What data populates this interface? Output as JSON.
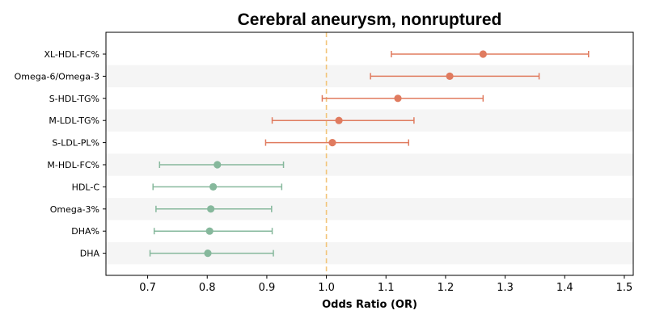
{
  "chart_data": {
    "type": "forest",
    "title": "Cerebral aneurysm, nonruptured",
    "xlabel": "Odds Ratio (OR)",
    "ylabel": "",
    "xlim": [
      0.63,
      1.515
    ],
    "xticks": [
      0.7,
      0.8,
      0.9,
      1.0,
      1.1,
      1.2,
      1.3,
      1.4,
      1.5
    ],
    "xtick_labels": [
      "0.7",
      "0.8",
      "0.9",
      "1.0",
      "1.1",
      "1.2",
      "1.3",
      "1.4",
      "1.5"
    ],
    "reference_line": 1.0,
    "grid": false,
    "alternating_row_shading": true,
    "colors": {
      "risk": "#e07b5f",
      "protective": "#86b89c",
      "reference_line": "#f2c57a",
      "row_shade": "#f5f5f5"
    },
    "rows": [
      {
        "label": "XL-HDL-FC%",
        "or": 1.263,
        "lo": 1.109,
        "hi": 1.44,
        "group": "risk"
      },
      {
        "label": "Omega-6/Omega-3",
        "or": 1.207,
        "lo": 1.074,
        "hi": 1.357,
        "group": "risk"
      },
      {
        "label": "S-HDL-TG%",
        "or": 1.12,
        "lo": 0.993,
        "hi": 1.263,
        "group": "risk"
      },
      {
        "label": "M-LDL-TG%",
        "or": 1.021,
        "lo": 0.909,
        "hi": 1.147,
        "group": "risk"
      },
      {
        "label": "S-LDL-PL%",
        "or": 1.01,
        "lo": 0.898,
        "hi": 1.138,
        "group": "risk"
      },
      {
        "label": "M-HDL-FC%",
        "or": 0.817,
        "lo": 0.72,
        "hi": 0.928,
        "group": "protective"
      },
      {
        "label": "HDL-C",
        "or": 0.81,
        "lo": 0.709,
        "hi": 0.925,
        "group": "protective"
      },
      {
        "label": "Omega-3%",
        "or": 0.806,
        "lo": 0.714,
        "hi": 0.908,
        "group": "protective"
      },
      {
        "label": "DHA%",
        "or": 0.804,
        "lo": 0.711,
        "hi": 0.909,
        "group": "protective"
      },
      {
        "label": "DHA",
        "or": 0.801,
        "lo": 0.704,
        "hi": 0.911,
        "group": "protective"
      }
    ]
  }
}
